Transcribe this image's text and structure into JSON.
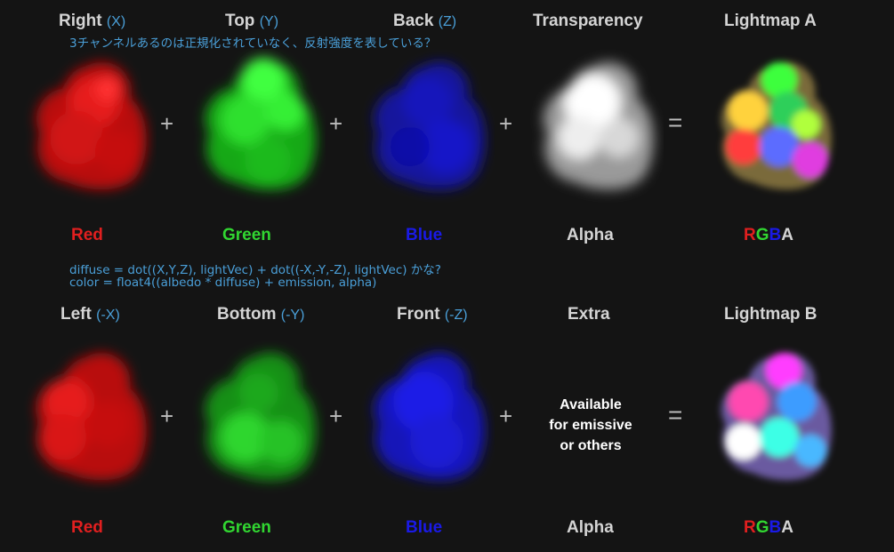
{
  "note_top": "3チャンネルあるのは正規化されていなく、反射強度を表している？",
  "note_formula_1": "diffuse = dot((X,Y,Z), lightVec) + dot((-X,-Y,-Z), lightVec) かな?",
  "note_formula_2": "color =  float4((albedo * diffuse) + emission, alpha)",
  "row_a": {
    "headers": [
      {
        "name": "Right",
        "axis": "(X)"
      },
      {
        "name": "Top",
        "axis": "(Y)"
      },
      {
        "name": "Back",
        "axis": "(Z)"
      },
      {
        "name": "Transparency",
        "axis": ""
      },
      {
        "name": "Lightmap A",
        "axis": ""
      }
    ],
    "labels": [
      "Red",
      "Green",
      "Blue",
      "Alpha"
    ],
    "rgba": [
      "R",
      "G",
      "B",
      "A"
    ],
    "ops": [
      "+",
      "+",
      "+",
      "="
    ]
  },
  "row_b": {
    "headers": [
      {
        "name": "Left",
        "axis": "(-X)"
      },
      {
        "name": "Bottom",
        "axis": "(-Y)"
      },
      {
        "name": "Front",
        "axis": "(-Z)"
      },
      {
        "name": "Extra",
        "axis": ""
      },
      {
        "name": "Lightmap B",
        "axis": ""
      }
    ],
    "labels": [
      "Red",
      "Green",
      "Blue",
      "Alpha"
    ],
    "rgba": [
      "R",
      "G",
      "B",
      "A"
    ],
    "ops": [
      "+",
      "+",
      "+",
      "="
    ],
    "extra_text": [
      "Available",
      "for emissive",
      "or others"
    ]
  },
  "colors": {
    "red": "#e11f1f",
    "green": "#31d631",
    "blue": "#1a1ae6",
    "white": "#d4d4d4",
    "note": "#4a9fd8",
    "background": "#141414"
  }
}
